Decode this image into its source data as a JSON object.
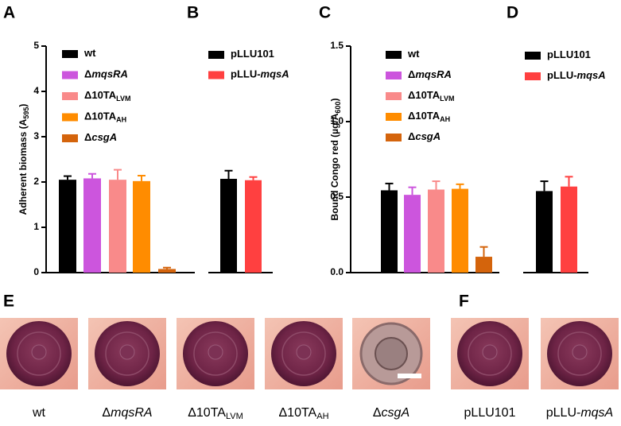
{
  "panels": [
    "A",
    "B",
    "C",
    "D",
    "E",
    "F"
  ],
  "chart_data": [
    {
      "type": "bar",
      "ylabel": [
        "Adherent biomass (A",
        "595",
        ")"
      ],
      "ylabel_style": [
        "normal",
        "sub",
        "normal"
      ],
      "ylim": [
        0,
        5
      ],
      "yticks": [
        0,
        1,
        2,
        3,
        4,
        5
      ],
      "series": [
        {
          "name": [
            "wt"
          ],
          "name_style": [
            "normal"
          ],
          "color": "#000000",
          "values": [
            2.05
          ],
          "errors": [
            0.08
          ]
        },
        {
          "name": [
            "Δ",
            "mqsRA"
          ],
          "name_style": [
            "normal",
            "italic"
          ],
          "color": "#cc55dd",
          "values": [
            2.08
          ],
          "errors": [
            0.1
          ]
        },
        {
          "name": [
            "Δ10TA",
            "LVM"
          ],
          "name_style": [
            "normal",
            "sub"
          ],
          "color": "#f98a8a",
          "values": [
            2.05
          ],
          "errors": [
            0.22
          ]
        },
        {
          "name": [
            "Δ10TA",
            "AH"
          ],
          "name_style": [
            "normal",
            "sub"
          ],
          "color": "#ff8c00",
          "values": [
            2.02
          ],
          "errors": [
            0.12
          ]
        },
        {
          "name": [
            "Δ",
            "csgA"
          ],
          "name_style": [
            "normal",
            "italic"
          ],
          "color": "#d4640c",
          "values": [
            0.08
          ],
          "errors": [
            0.03
          ]
        }
      ]
    },
    {
      "type": "bar",
      "ylim": [
        0,
        5
      ],
      "series": [
        {
          "name": [
            "pLLU101"
          ],
          "name_style": [
            "normal"
          ],
          "color": "#000000",
          "values": [
            2.07
          ],
          "errors": [
            0.18
          ]
        },
        {
          "name": [
            "pLLU-",
            "mqsA"
          ],
          "name_style": [
            "normal",
            "italic"
          ],
          "color": "#ff4040",
          "values": [
            2.04
          ],
          "errors": [
            0.07
          ]
        }
      ]
    },
    {
      "type": "bar",
      "ylabel": [
        "Bound Congo red (µg/A",
        "600",
        ")"
      ],
      "ylabel_style": [
        "normal",
        "sub",
        "normal"
      ],
      "ylim": [
        0,
        1.5
      ],
      "yticks": [
        {
          "value": 0,
          "label": "0.0"
        },
        0.5,
        {
          "value": 1,
          "label": "1.0"
        },
        1.5
      ],
      "series": [
        {
          "name": [
            "wt"
          ],
          "name_style": [
            "normal"
          ],
          "color": "#000000",
          "values": [
            0.545
          ],
          "errors": [
            0.045
          ]
        },
        {
          "name": [
            "Δ",
            "mqsRA"
          ],
          "name_style": [
            "normal",
            "italic"
          ],
          "color": "#cc55dd",
          "values": [
            0.515
          ],
          "errors": [
            0.05
          ]
        },
        {
          "name": [
            "Δ10TA",
            "LVM"
          ],
          "name_style": [
            "normal",
            "sub"
          ],
          "color": "#f98a8a",
          "values": [
            0.55
          ],
          "errors": [
            0.055
          ]
        },
        {
          "name": [
            "Δ10TA",
            "AH"
          ],
          "name_style": [
            "normal",
            "sub"
          ],
          "color": "#ff8c00",
          "values": [
            0.555
          ],
          "errors": [
            0.03
          ]
        },
        {
          "name": [
            "Δ",
            "csgA"
          ],
          "name_style": [
            "normal",
            "italic"
          ],
          "color": "#d4640c",
          "values": [
            0.105
          ],
          "errors": [
            0.065
          ]
        }
      ]
    },
    {
      "type": "bar",
      "ylim": [
        0,
        1.5
      ],
      "series": [
        {
          "name": [
            "pLLU101"
          ],
          "name_style": [
            "normal"
          ],
          "color": "#000000",
          "values": [
            0.54
          ],
          "errors": [
            0.065
          ]
        },
        {
          "name": [
            "pLLU-",
            "mqsA"
          ],
          "name_style": [
            "normal",
            "italic"
          ],
          "color": "#ff4040",
          "values": [
            0.57
          ],
          "errors": [
            0.065
          ]
        }
      ]
    }
  ],
  "photos": [
    {
      "caption": [
        "wt"
      ],
      "caption_style": [
        "normal"
      ]
    },
    {
      "caption": [
        "Δ",
        "mqsRA"
      ],
      "caption_style": [
        "normal",
        "italic"
      ]
    },
    {
      "caption": [
        "Δ10TA",
        "LVM"
      ],
      "caption_style": [
        "normal",
        "sub"
      ]
    },
    {
      "caption": [
        "Δ10TA",
        "AH"
      ],
      "caption_style": [
        "normal",
        "sub"
      ]
    },
    {
      "caption": [
        "Δ",
        "csgA"
      ],
      "caption_style": [
        "normal",
        "italic"
      ]
    },
    {
      "caption": [
        "pLLU101"
      ],
      "caption_style": [
        "normal"
      ]
    },
    {
      "caption": [
        "pLLU-",
        "mqsA"
      ],
      "caption_style": [
        "normal",
        "italic"
      ]
    }
  ]
}
